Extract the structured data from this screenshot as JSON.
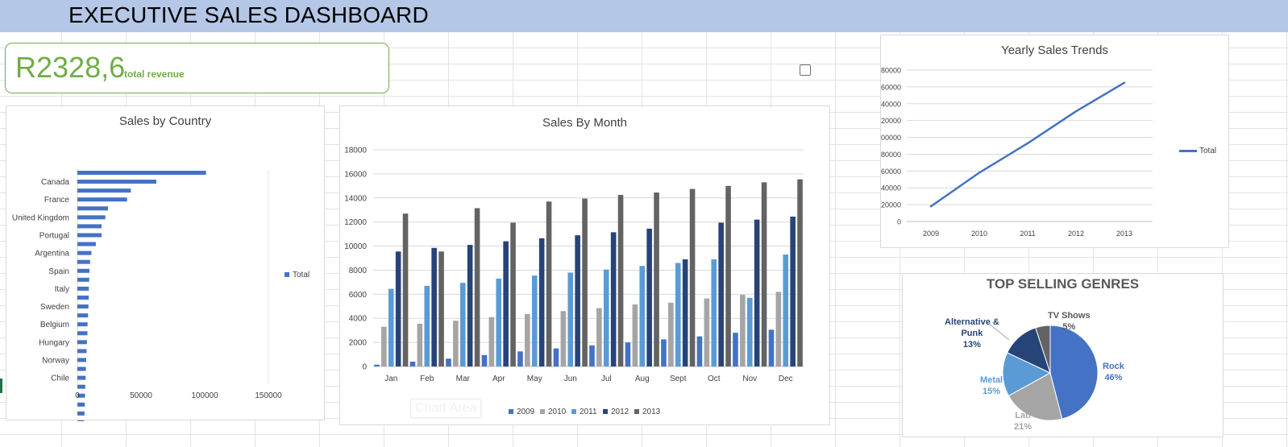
{
  "header": {
    "title": "EXECUTIVE SALES DASHBOARD"
  },
  "kpi": {
    "value": "R2328,6",
    "label": "total revenue"
  },
  "colors": {
    "header_bg": "#b4c7e7",
    "kpi": "#70ad47",
    "y2009": "#4472c4",
    "y2010": "#a5a5a5",
    "y2011": "#5b9bd5",
    "y2012": "#264478",
    "y2013": "#636363"
  },
  "overlay": {
    "chart_area_tooltip": "Chart Area"
  },
  "chart_data": [
    {
      "id": "country",
      "type": "bar",
      "orientation": "horizontal",
      "title": "Sales by Country",
      "categories_shown": [
        "Canada",
        "France",
        "United Kingdom",
        "Portugal",
        "Argentina",
        "Spain",
        "Italy",
        "Sweden",
        "Belgium",
        "Hungary",
        "Norway",
        "Chile"
      ],
      "values": [
        101000,
        62000,
        42000,
        39000,
        24000,
        22000,
        19000,
        19000,
        14500,
        11000,
        10000,
        9500,
        9300,
        9000,
        8900,
        8700,
        8400,
        8000,
        7900,
        7500,
        7200,
        6900,
        6700,
        6500,
        6200,
        6000,
        5800,
        5600,
        5200,
        4700
      ],
      "x_ticks": [
        "0",
        "50000",
        "100000",
        "150000"
      ],
      "xlim": [
        0,
        150000
      ],
      "series": [
        {
          "name": "Total"
        }
      ],
      "legend": "right"
    },
    {
      "id": "month",
      "type": "bar",
      "title": "Sales By Month",
      "categories": [
        "Jan",
        "Feb",
        "Mar",
        "Apr",
        "May",
        "Jun",
        "Jul",
        "Aug",
        "Sept",
        "Oct",
        "Nov",
        "Dec"
      ],
      "series": [
        {
          "name": "2009",
          "values": [
            150,
            400,
            650,
            950,
            1250,
            1500,
            1750,
            2000,
            2250,
            2500,
            2800,
            3050
          ]
        },
        {
          "name": "2010",
          "values": [
            3300,
            3550,
            3800,
            4100,
            4350,
            4600,
            4850,
            5150,
            5300,
            5650,
            5950,
            6200
          ]
        },
        {
          "name": "2011",
          "values": [
            6450,
            6700,
            6950,
            7300,
            7550,
            7800,
            8050,
            8350,
            8600,
            8900,
            5700,
            9300
          ]
        },
        {
          "name": "2012",
          "values": [
            9550,
            9850,
            10100,
            10400,
            10650,
            10900,
            11150,
            11450,
            8900,
            11950,
            12200,
            12450
          ]
        },
        {
          "name": "2013",
          "values": [
            12700,
            9550,
            13150,
            11950,
            13700,
            13950,
            14250,
            14450,
            14750,
            15000,
            15300,
            15550
          ]
        }
      ],
      "y_ticks": [
        "0",
        "2000",
        "4000",
        "6000",
        "8000",
        "10000",
        "12000",
        "14000",
        "16000",
        "18000"
      ],
      "ylim": [
        0,
        18000
      ],
      "grid": true,
      "legend": "bottom"
    },
    {
      "id": "yearly",
      "type": "line",
      "title": "Yearly Sales Trends",
      "x": [
        "2009",
        "2010",
        "2011",
        "2012",
        "2013"
      ],
      "series": [
        {
          "name": "Total",
          "values": [
            18000,
            58000,
            93000,
            131000,
            165000
          ]
        }
      ],
      "y_ticks": [
        "0",
        "20000",
        "40000",
        "60000",
        "80000",
        "100000",
        "120000",
        "140000",
        "160000",
        "180000"
      ],
      "ylim": [
        0,
        180000
      ],
      "grid": true,
      "legend": "right"
    },
    {
      "id": "genres",
      "type": "pie",
      "title": "TOP SELLING GENRES",
      "slices": [
        {
          "name": "Rock",
          "pct_label": "46%",
          "value": 46,
          "color": "#4472c4"
        },
        {
          "name": "Latin",
          "pct_label": "21%",
          "value": 21,
          "color": "#a5a5a5"
        },
        {
          "name": "Metal",
          "pct_label": "15%",
          "value": 15,
          "color": "#5b9bd5"
        },
        {
          "name": "Alternative & Punk",
          "pct_label": "13%",
          "value": 13,
          "color": "#264478"
        },
        {
          "name": "TV Shows",
          "pct_label": "5%",
          "value": 5,
          "color": "#636363"
        }
      ],
      "label_texts": {
        "alt_line1": "Alternative &",
        "alt_line2": "Punk",
        "latin_visible": "Lati"
      }
    }
  ]
}
